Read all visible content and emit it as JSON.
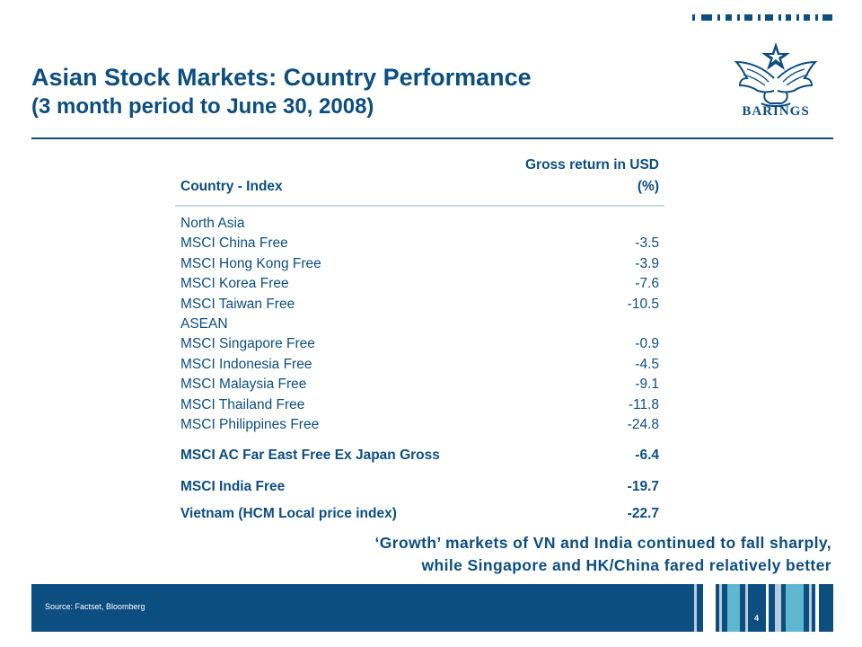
{
  "header": {
    "title": "Asian Stock Markets: Country Performance",
    "subtitle": "(3 month period to June 30, 2008)"
  },
  "logo": {
    "text": "BARINGS",
    "icon": "eagle-crest-icon"
  },
  "table": {
    "col1_header": "Country - Index",
    "col2_header_line1": "Gross return in USD",
    "col2_header_line2": "(%)",
    "rows": [
      {
        "label": "North Asia",
        "value": ""
      },
      {
        "label": "MSCI China Free",
        "value": "-3.5"
      },
      {
        "label": "MSCI Hong Kong Free",
        "value": "-3.9"
      },
      {
        "label": "MSCI Korea Free",
        "value": "-7.6"
      },
      {
        "label": "MSCI Taiwan Free",
        "value": "-10.5"
      },
      {
        "label": "ASEAN",
        "value": ""
      },
      {
        "label": "MSCI Singapore Free",
        "value": "-0.9"
      },
      {
        "label": "MSCI Indonesia Free",
        "value": "-4.5"
      },
      {
        "label": "MSCI Malaysia Free",
        "value": "-9.1"
      },
      {
        "label": "MSCI Thailand Free",
        "value": "-11.8"
      },
      {
        "label": "MSCI Philippines Free",
        "value": "-24.8"
      },
      {
        "label": "MSCI AC Far East Free Ex Japan Gross",
        "value": "-6.4"
      },
      {
        "label": "MSCI India Free",
        "value": "-19.7"
      },
      {
        "label": "Vietnam (HCM Local price index)",
        "value": "-22.7"
      }
    ]
  },
  "callout": {
    "line1": "‘Growth’ markets of VN and India continued to fall sharply,",
    "line2": "while Singapore and HK/China fared relatively better"
  },
  "footer": {
    "source": "Source: Factset, Bloomberg",
    "page_number": "4"
  },
  "colors": {
    "brand_blue": "#0d4e80",
    "header_rule": "#cfd9e4",
    "stripe_light": "#b9ccdd",
    "stripe_teal": "#5fb6cf"
  }
}
